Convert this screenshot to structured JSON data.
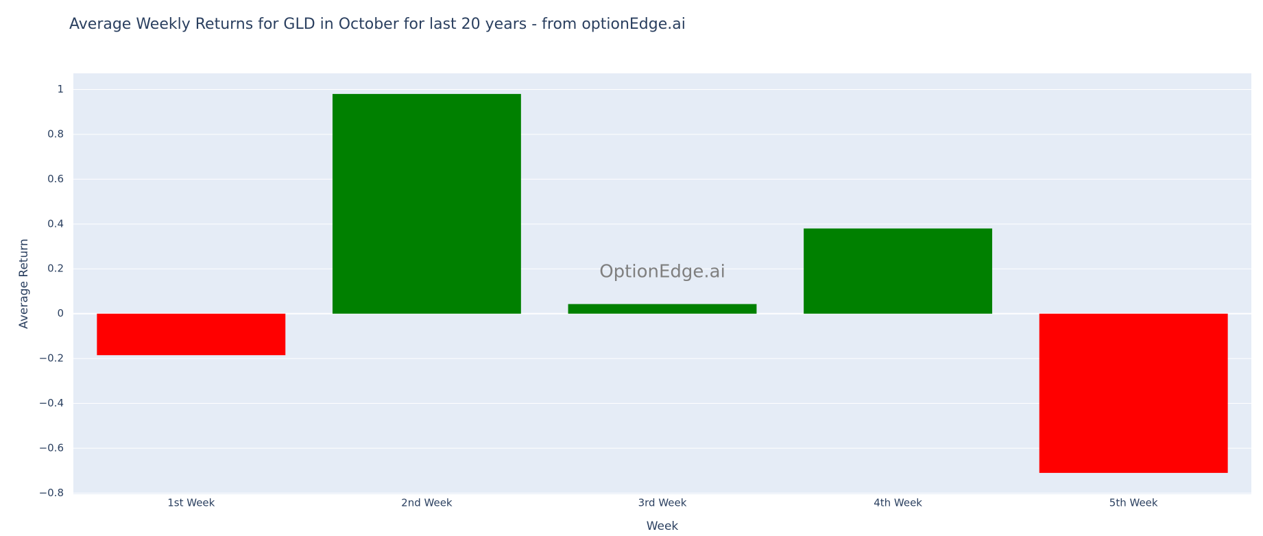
{
  "chart_data": {
    "type": "bar",
    "title": "Average Weekly Returns for GLD in October for last 20 years - from optionEdge.ai",
    "x_label": "Week",
    "y_label": "Average Return",
    "annotation": "OptionEdge.ai",
    "categories": [
      "1st Week",
      "2nd Week",
      "3rd Week",
      "4th Week",
      "5th Week"
    ],
    "values": [
      -0.185,
      0.98,
      0.043,
      0.38,
      -0.71
    ],
    "colors": [
      "#ff0000",
      "#008000",
      "#008000",
      "#008000",
      "#ff0000"
    ],
    "ylim": [
      -0.805,
      1.072
    ],
    "yticks": [
      {
        "value": -0.8,
        "label": "−0.8"
      },
      {
        "value": -0.6,
        "label": "−0.6"
      },
      {
        "value": -0.4,
        "label": "−0.4"
      },
      {
        "value": -0.2,
        "label": "−0.2"
      },
      0,
      0.2,
      0.4,
      0.6,
      0.8,
      1
    ],
    "grid": true
  }
}
